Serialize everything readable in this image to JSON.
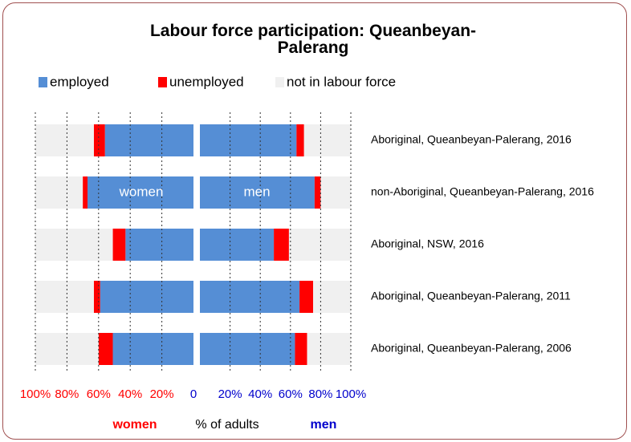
{
  "chart_data": {
    "type": "butterfly-bar",
    "title": "Labour force participation: Queanbeyan-Palerang",
    "categories": [
      "Aboriginal, Queanbeyan-Palerang, 2016",
      "non-Aboriginal, Queanbeyan-Palerang, 2016",
      "Aboriginal, NSW, 2016",
      "Aboriginal, Queanbeyan-Palerang, 2011",
      "Aboriginal, Queanbeyan-Palerang, 2006"
    ],
    "series": [
      {
        "name": "employed",
        "color": "#558ed5",
        "women": [
          56,
          67,
          43,
          59,
          51
        ],
        "men": [
          64,
          76,
          49,
          66,
          63
        ]
      },
      {
        "name": "unemployed",
        "color": "#ff0000",
        "women": [
          7,
          3,
          8,
          4,
          9
        ],
        "men": [
          5,
          4,
          10,
          9,
          8
        ]
      },
      {
        "name": "not in labour force",
        "color": "#f0f0f0",
        "women": [
          37,
          30,
          49,
          37,
          40
        ],
        "men": [
          31,
          20,
          41,
          25,
          29
        ]
      }
    ],
    "group_labels": [
      "women",
      "men"
    ],
    "group_colors": [
      "#ff0000",
      "#0000cc"
    ],
    "xlabel": "% of adults",
    "xlim": [
      0,
      100
    ],
    "xticks_women": [
      {
        "value": 100,
        "label": "100%"
      },
      {
        "value": 80,
        "label": "80%"
      },
      {
        "value": 60,
        "label": "60%"
      },
      {
        "value": 40,
        "label": "40%"
      },
      {
        "value": 20,
        "label": "20%"
      },
      0
    ],
    "xticks_men": [
      {
        "value": 20,
        "label": "20%"
      },
      {
        "value": 40,
        "label": "40%"
      },
      {
        "value": 60,
        "label": "60%"
      },
      {
        "value": 80,
        "label": "80%"
      },
      {
        "value": 100,
        "label": "100%"
      }
    ],
    "grid": true
  }
}
